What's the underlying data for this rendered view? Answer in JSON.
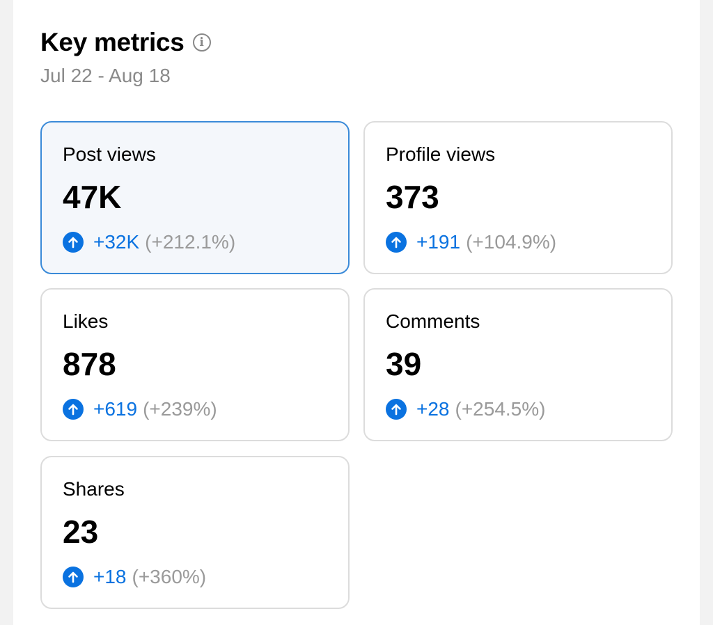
{
  "header": {
    "title": "Key metrics",
    "info_icon": "info-icon",
    "date_range": "Jul 22 - Aug 18"
  },
  "colors": {
    "accent": "#0a72e0",
    "selected_border": "#3a8ad8",
    "selected_bg": "#f4f7fb"
  },
  "metrics": [
    {
      "label": "Post views",
      "value": "47K",
      "change": "+32K",
      "percent": "(+212.1%)",
      "selected": true
    },
    {
      "label": "Profile views",
      "value": "373",
      "change": "+191",
      "percent": "(+104.9%)"
    },
    {
      "label": "Likes",
      "value": "878",
      "change": "+619",
      "percent": "(+239%)"
    },
    {
      "label": "Comments",
      "value": "39",
      "change": "+28",
      "percent": "(+254.5%)"
    },
    {
      "label": "Shares",
      "value": "23",
      "change": "+18",
      "percent": "(+360%)"
    }
  ]
}
